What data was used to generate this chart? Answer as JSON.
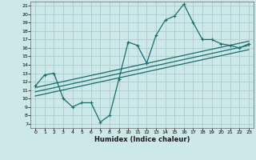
{
  "xlabel": "Humidex (Indice chaleur)",
  "ylabel": "",
  "bg_color": "#cce8e8",
  "grid_color": "#aacccc",
  "line_color": "#1a6b6b",
  "xlim": [
    -0.5,
    23.5
  ],
  "ylim": [
    6.5,
    21.5
  ],
  "xticks": [
    0,
    1,
    2,
    3,
    4,
    5,
    6,
    7,
    8,
    9,
    10,
    11,
    12,
    13,
    14,
    15,
    16,
    17,
    18,
    19,
    20,
    21,
    22,
    23
  ],
  "yticks": [
    7,
    8,
    9,
    10,
    11,
    12,
    13,
    14,
    15,
    16,
    17,
    18,
    19,
    20,
    21
  ],
  "main_x": [
    0,
    1,
    2,
    3,
    4,
    5,
    6,
    7,
    8,
    9,
    10,
    11,
    12,
    13,
    14,
    15,
    16,
    17,
    18,
    19,
    20,
    21,
    22,
    23
  ],
  "main_y": [
    11.5,
    12.8,
    13.0,
    10.0,
    9.0,
    9.5,
    9.5,
    7.2,
    8.0,
    12.3,
    16.7,
    16.3,
    14.2,
    17.5,
    19.3,
    19.8,
    21.2,
    19.0,
    17.0,
    17.0,
    16.5,
    16.3,
    16.0,
    16.5
  ],
  "line1_x": [
    0,
    23
  ],
  "line1_y": [
    11.3,
    16.8
  ],
  "line2_x": [
    0,
    23
  ],
  "line2_y": [
    10.8,
    16.3
  ],
  "line3_x": [
    0,
    23
  ],
  "line3_y": [
    10.3,
    15.8
  ]
}
